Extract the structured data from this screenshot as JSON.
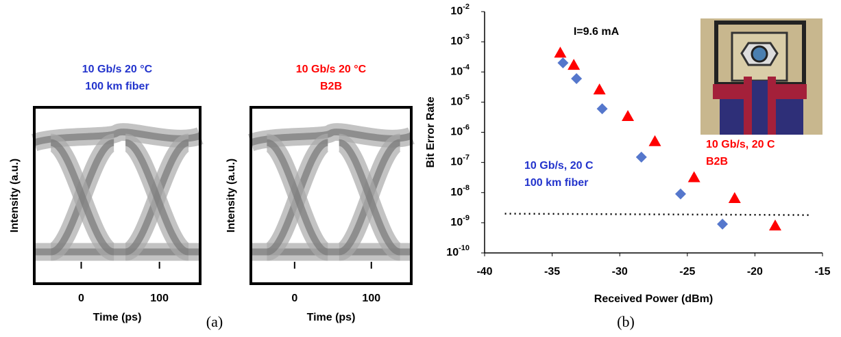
{
  "chart_data": [
    {
      "type": "eye",
      "title_lines": [
        "10 Gb/s 20 °C",
        "100 km fiber"
      ],
      "title_color": "#2233cc",
      "xlabel": "Time (ps)",
      "ylabel": "Intensity (a.u.)",
      "xlim": [
        -60,
        152
      ],
      "xticks": [
        0,
        100
      ]
    },
    {
      "type": "eye",
      "title_lines": [
        "10 Gb/s 20 °C",
        "B2B"
      ],
      "title_color": "#ff0000",
      "xlabel": "Time (ps)",
      "ylabel": "Intensity (a.u.)",
      "xlim": [
        -57,
        152
      ],
      "xticks": [
        0,
        100
      ]
    },
    {
      "type": "scatter",
      "annotation": "I=9.6 mA",
      "xlabel": "Received Power (dBm)",
      "ylabel": "Bit Error Rate",
      "xlim": [
        -40,
        -15
      ],
      "xticks": [
        -40,
        -35,
        -30,
        -25,
        -20,
        -15
      ],
      "ylim": [
        1e-10,
        0.01
      ],
      "ylog": true,
      "yticks": [
        {
          "value": 0.01,
          "label": "10^-2"
        },
        {
          "value": 0.001,
          "label": "10^-3"
        },
        {
          "value": 0.0001,
          "label": "10^-4"
        },
        {
          "value": 1e-05,
          "label": "10^-5"
        },
        {
          "value": 1e-06,
          "label": "10^-6"
        },
        {
          "value": 1e-07,
          "label": "10^-7"
        },
        {
          "value": 1e-08,
          "label": "10^-8"
        },
        {
          "value": 1e-09,
          "label": "10^-9"
        },
        {
          "value": 1e-10,
          "label": "10^-10"
        }
      ],
      "series": [
        {
          "name_lines": [
            "10 Gb/s, 20 C",
            "100 km fiber"
          ],
          "color": "#5577cc",
          "label_color": "#2233cc",
          "marker": "diamond",
          "x": [
            -34.2,
            -33.2,
            -31.3,
            -28.4,
            -25.5,
            -22.4
          ],
          "values": [
            0.0002,
            6e-05,
            6e-06,
            1.5e-07,
            9e-09,
            9e-10
          ]
        },
        {
          "name_lines": [
            "10 Gb/s, 20 C",
            "B2B"
          ],
          "color": "#ff0000",
          "label_color": "#ff0000",
          "marker": "triangle",
          "x": [
            -34.4,
            -33.4,
            -31.5,
            -29.4,
            -27.4,
            -24.5,
            -21.5,
            -18.5
          ],
          "values": [
            0.00043,
            0.00017,
            2.6e-05,
            3.4e-06,
            5e-07,
            3.2e-08,
            6.5e-09,
            8e-10
          ]
        }
      ],
      "reference_line": {
        "x": [
          -38.5,
          -16
        ],
        "values": [
          2e-09,
          1.8e-09
        ]
      }
    }
  ],
  "captions": [
    "(a)",
    "(b)"
  ]
}
